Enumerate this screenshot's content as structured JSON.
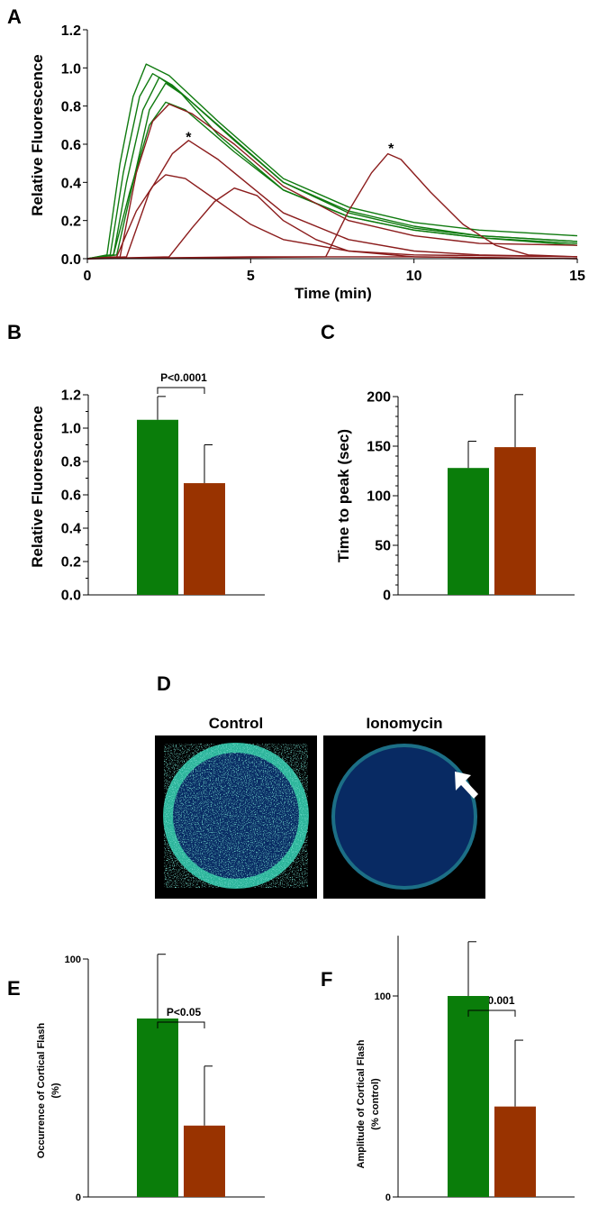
{
  "panels": {
    "A": "A",
    "B": "B",
    "C": "C",
    "D": "D",
    "E": "E",
    "F": "F"
  },
  "colors": {
    "control": "#0f7a0f",
    "ionomycin": "#8b1c1c",
    "control_bar": "#0a7d0a",
    "ionomycin_bar": "#993300",
    "egg_interior": "#082a63",
    "egg_cortex": "#2bb49a"
  },
  "chart_data": [
    {
      "id": "A",
      "type": "line",
      "xlabel": "Time (min)",
      "ylabel": "Relative Fluorescence",
      "xlim": [
        0,
        15
      ],
      "ylim": [
        0,
        1.2
      ],
      "xticks": [
        0,
        5,
        10,
        15
      ],
      "yticks": [
        "0.0",
        "0.2",
        "0.4",
        "0.6",
        "0.8",
        "1.0",
        "1.2"
      ],
      "annotations": [
        {
          "text": "*",
          "x": 3.1,
          "y": 0.66
        },
        {
          "text": "*",
          "x": 9.3,
          "y": 0.6
        }
      ],
      "series": [
        {
          "group": "control",
          "points": [
            [
              0,
              0
            ],
            [
              0.6,
              0.02
            ],
            [
              1.0,
              0.5
            ],
            [
              1.4,
              0.85
            ],
            [
              1.8,
              1.02
            ],
            [
              2.5,
              0.96
            ],
            [
              4,
              0.72
            ],
            [
              6,
              0.42
            ],
            [
              8,
              0.27
            ],
            [
              10,
              0.19
            ],
            [
              12,
              0.15
            ],
            [
              15,
              0.12
            ]
          ]
        },
        {
          "group": "control",
          "points": [
            [
              0,
              0
            ],
            [
              0.7,
              0.02
            ],
            [
              1.1,
              0.45
            ],
            [
              1.6,
              0.85
            ],
            [
              2.0,
              0.97
            ],
            [
              2.6,
              0.91
            ],
            [
              4,
              0.7
            ],
            [
              6,
              0.4
            ],
            [
              8,
              0.24
            ],
            [
              10,
              0.16
            ],
            [
              12,
              0.12
            ],
            [
              15,
              0.09
            ]
          ]
        },
        {
          "group": "control",
          "points": [
            [
              0,
              0
            ],
            [
              0.8,
              0.02
            ],
            [
              1.2,
              0.4
            ],
            [
              1.7,
              0.78
            ],
            [
              2.2,
              0.95
            ],
            [
              2.8,
              0.88
            ],
            [
              4,
              0.65
            ],
            [
              6,
              0.36
            ],
            [
              8,
              0.22
            ],
            [
              10,
              0.15
            ],
            [
              12,
              0.11
            ],
            [
              15,
              0.08
            ]
          ]
        },
        {
          "group": "control",
          "points": [
            [
              0,
              0
            ],
            [
              0.9,
              0.02
            ],
            [
              1.4,
              0.4
            ],
            [
              1.9,
              0.78
            ],
            [
              2.4,
              0.92
            ],
            [
              3,
              0.85
            ],
            [
              4.5,
              0.62
            ],
            [
              6,
              0.4
            ],
            [
              8,
              0.25
            ],
            [
              10,
              0.17
            ],
            [
              12,
              0.12
            ],
            [
              15,
              0.09
            ]
          ]
        },
        {
          "group": "control",
          "points": [
            [
              0,
              0
            ],
            [
              0.8,
              0.02
            ],
            [
              1.3,
              0.35
            ],
            [
              1.9,
              0.7
            ],
            [
              2.4,
              0.82
            ],
            [
              3,
              0.78
            ],
            [
              4.5,
              0.56
            ],
            [
              6,
              0.36
            ],
            [
              8,
              0.22
            ],
            [
              10,
              0.15
            ],
            [
              12,
              0.11
            ],
            [
              15,
              0.07
            ]
          ]
        },
        {
          "group": "ionomycin",
          "points": [
            [
              0,
              0
            ],
            [
              1.0,
              0.01
            ],
            [
              1.5,
              0.45
            ],
            [
              2.0,
              0.72
            ],
            [
              2.5,
              0.81
            ],
            [
              3.2,
              0.76
            ],
            [
              4.5,
              0.6
            ],
            [
              6,
              0.38
            ],
            [
              8,
              0.2
            ],
            [
              10,
              0.12
            ],
            [
              12,
              0.08
            ],
            [
              15,
              0.07
            ]
          ]
        },
        {
          "group": "ionomycin",
          "points": [
            [
              0,
              0
            ],
            [
              1.2,
              0.01
            ],
            [
              1.9,
              0.35
            ],
            [
              2.6,
              0.55
            ],
            [
              3.1,
              0.62
            ],
            [
              4,
              0.52
            ],
            [
              5,
              0.38
            ],
            [
              6,
              0.24
            ],
            [
              8,
              0.1
            ],
            [
              10,
              0.04
            ],
            [
              12,
              0.02
            ],
            [
              15,
              0.01
            ]
          ]
        },
        {
          "group": "ionomycin",
          "points": [
            [
              0,
              0
            ],
            [
              0.9,
              0.01
            ],
            [
              1.5,
              0.25
            ],
            [
              2.0,
              0.38
            ],
            [
              2.4,
              0.44
            ],
            [
              3,
              0.42
            ],
            [
              4,
              0.3
            ],
            [
              5,
              0.18
            ],
            [
              6,
              0.1
            ],
            [
              8,
              0.04
            ],
            [
              10,
              0.02
            ],
            [
              15,
              0.01
            ]
          ]
        },
        {
          "group": "ionomycin",
          "points": [
            [
              0,
              0
            ],
            [
              2.5,
              0.01
            ],
            [
              3.2,
              0.16
            ],
            [
              3.9,
              0.3
            ],
            [
              4.5,
              0.37
            ],
            [
              5.2,
              0.33
            ],
            [
              6,
              0.2
            ],
            [
              7,
              0.1
            ],
            [
              8,
              0.04
            ],
            [
              10,
              0.01
            ],
            [
              15,
              0.0
            ]
          ]
        },
        {
          "group": "ionomycin",
          "points": [
            [
              0,
              0
            ],
            [
              7.3,
              0.01
            ],
            [
              8.0,
              0.25
            ],
            [
              8.7,
              0.45
            ],
            [
              9.2,
              0.55
            ],
            [
              9.6,
              0.52
            ],
            [
              10.5,
              0.35
            ],
            [
              11.5,
              0.18
            ],
            [
              12.5,
              0.07
            ],
            [
              13.5,
              0.02
            ],
            [
              15,
              0.01
            ]
          ]
        },
        {
          "group": "ionomycin",
          "points": [
            [
              0,
              0
            ],
            [
              5,
              0.01
            ],
            [
              10,
              0.01
            ],
            [
              15,
              0.0
            ]
          ]
        }
      ]
    },
    {
      "id": "B",
      "type": "bar",
      "ylabel": "Relative Fluorescence",
      "ylim": [
        0,
        1.2
      ],
      "yticks": [
        "0.0",
        "0.2",
        "0.4",
        "0.6",
        "0.8",
        "1.0",
        "1.2"
      ],
      "significance": "P<0.0001",
      "bars": [
        {
          "group": "control",
          "value": 1.05,
          "error": 0.14
        },
        {
          "group": "ionomycin",
          "value": 0.67,
          "error": 0.23
        }
      ]
    },
    {
      "id": "C",
      "type": "bar",
      "ylabel": "Time to peak (sec)",
      "ylim": [
        0,
        200
      ],
      "yticks": [
        "0",
        "50",
        "100",
        "150",
        "200"
      ],
      "bars": [
        {
          "group": "control",
          "value": 128,
          "error": 27
        },
        {
          "group": "ionomycin",
          "value": 149,
          "error": 53
        }
      ]
    },
    {
      "id": "E",
      "type": "bar",
      "ylabel_line1": "Occurrence of Cortical Flash",
      "ylabel_line2": "(%)",
      "ylim": [
        0,
        100
      ],
      "yticks": [
        "0",
        "100"
      ],
      "significance": "P<0.05",
      "bars": [
        {
          "group": "control",
          "value": 75,
          "error": 27
        },
        {
          "group": "ionomycin",
          "value": 30,
          "error": 25
        }
      ]
    },
    {
      "id": "F",
      "type": "bar",
      "ylabel_line1": "Amplitude of Cortical Flash",
      "ylabel_line2": "(% control)",
      "ylim": [
        0,
        130
      ],
      "yticks": [
        "0",
        "100"
      ],
      "significance": "P<0.001",
      "bars": [
        {
          "group": "control",
          "value": 100,
          "error": 27
        },
        {
          "group": "ionomycin",
          "value": 45,
          "error": 33
        }
      ]
    }
  ],
  "images_D": {
    "left_label": "Control",
    "right_label": "Ionomycin"
  }
}
